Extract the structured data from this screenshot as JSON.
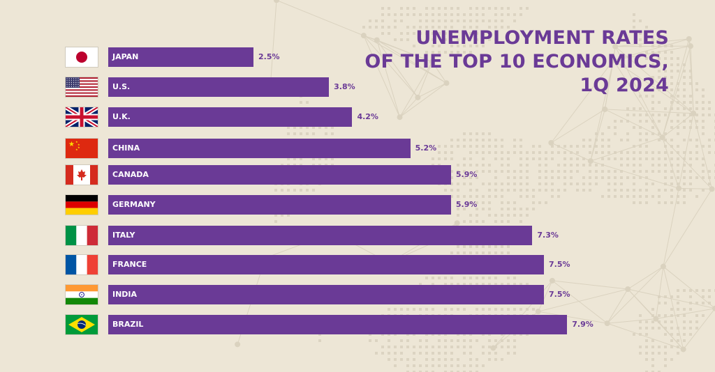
{
  "colors": {
    "background": "#ede6d6",
    "accent": "#6a3a96",
    "bar_text": "#ffffff"
  },
  "title": {
    "line1": "UNEMPLOYMENT RATES",
    "line2": "OF THE TOP 10 ECONOMICS,",
    "line3": "1Q 2024"
  },
  "chart_data": {
    "type": "bar",
    "orientation": "horizontal",
    "categories": [
      "JAPAN",
      "U.S.",
      "U.K.",
      "CHINA",
      "CANADA",
      "GERMANY",
      "ITALY",
      "FRANCE",
      "INDIA",
      "BRAZIL"
    ],
    "values": [
      2.5,
      3.8,
      4.2,
      5.2,
      5.9,
      5.9,
      7.3,
      7.5,
      7.5,
      7.9
    ],
    "value_labels": [
      "2.5%",
      "3.8%",
      "4.2%",
      "5.2%",
      "5.9%",
      "5.9%",
      "7.3%",
      "7.5%",
      "7.5%",
      "7.9%"
    ],
    "flags": [
      "japan-flag",
      "us-flag",
      "uk-flag",
      "china-flag",
      "canada-flag",
      "germany-flag",
      "italy-flag",
      "france-flag",
      "india-flag",
      "brazil-flag"
    ],
    "unit": "%",
    "grid": false,
    "legend": "none"
  }
}
